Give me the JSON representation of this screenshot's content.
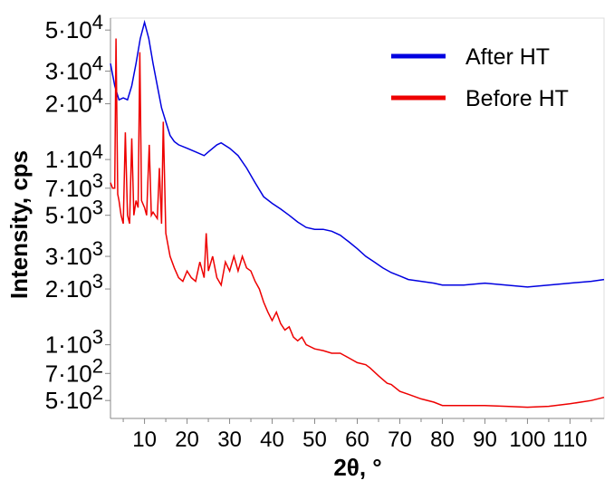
{
  "chart_data": {
    "type": "line",
    "xlabel": "2θ, °",
    "ylabel": "Intensity, cps",
    "yscale": "log",
    "xlim": [
      2,
      118
    ],
    "ylim": [
      400,
      58000
    ],
    "grid": false,
    "legend_position": "top-right",
    "x_ticks": [
      10,
      20,
      30,
      40,
      50,
      60,
      70,
      80,
      90,
      100,
      110
    ],
    "y_ticks": [
      {
        "value": 50000,
        "mant": "5",
        "exp": "4"
      },
      {
        "value": 30000,
        "mant": "3",
        "exp": "4"
      },
      {
        "value": 20000,
        "mant": "2",
        "exp": "4"
      },
      {
        "value": 10000,
        "mant": "1",
        "exp": "4"
      },
      {
        "value": 7000,
        "mant": "7",
        "exp": "3"
      },
      {
        "value": 5000,
        "mant": "5",
        "exp": "3"
      },
      {
        "value": 3000,
        "mant": "3",
        "exp": "3"
      },
      {
        "value": 2000,
        "mant": "2",
        "exp": "3"
      },
      {
        "value": 1000,
        "mant": "1",
        "exp": "3"
      },
      {
        "value": 700,
        "mant": "7",
        "exp": "2"
      },
      {
        "value": 500,
        "mant": "5",
        "exp": "2"
      }
    ],
    "series": [
      {
        "name": "After HT",
        "color": "#0000e0",
        "x": [
          2,
          3,
          4,
          5,
          6,
          7,
          8,
          9,
          10,
          11,
          12,
          13,
          14,
          15,
          16,
          17,
          18,
          20,
          22,
          24,
          25,
          27,
          28,
          30,
          32,
          34,
          36,
          38,
          40,
          42,
          44,
          46,
          48,
          50,
          52,
          54,
          56,
          58,
          60,
          62,
          64,
          66,
          68,
          70,
          72,
          75,
          78,
          80,
          85,
          90,
          95,
          100,
          105,
          110,
          115,
          118
        ],
        "y": [
          33000,
          25000,
          21000,
          21500,
          21000,
          25000,
          33000,
          45000,
          55000,
          45000,
          33000,
          25000,
          19000,
          16000,
          13500,
          12500,
          12000,
          11500,
          11000,
          10500,
          11000,
          12000,
          12300,
          11500,
          10500,
          9000,
          7500,
          6300,
          5800,
          5400,
          5000,
          4600,
          4300,
          4200,
          4200,
          4100,
          3900,
          3600,
          3300,
          3000,
          2800,
          2600,
          2450,
          2350,
          2250,
          2200,
          2150,
          2100,
          2100,
          2150,
          2100,
          2050,
          2100,
          2150,
          2200,
          2250
        ]
      },
      {
        "name": "Before HT",
        "color": "#ee0000",
        "x": [
          2,
          2.5,
          3,
          3.3,
          3.7,
          4,
          4.5,
          5,
          5.5,
          6,
          6.5,
          7,
          7.5,
          8,
          8.5,
          8.9,
          9.3,
          10,
          10.5,
          11.1,
          11.6,
          12,
          13,
          13.5,
          14,
          14.4,
          15,
          16,
          17,
          18,
          19,
          20,
          21,
          22,
          23,
          24,
          24.5,
          25,
          26,
          27,
          28,
          29,
          30,
          31,
          32,
          33,
          34,
          35,
          36,
          37,
          38,
          39,
          40,
          41,
          42,
          43,
          44,
          45,
          46,
          47,
          48,
          50,
          52,
          54,
          56,
          58,
          60,
          62,
          63,
          65,
          67,
          68,
          70,
          72,
          75,
          78,
          80,
          85,
          90,
          95,
          100,
          105,
          110,
          115,
          118
        ],
        "y": [
          7500,
          7000,
          7000,
          45000,
          6500,
          6000,
          5000,
          4500,
          14000,
          5000,
          4500,
          13000,
          5000,
          6000,
          5500,
          38000,
          6000,
          5500,
          5000,
          12000,
          5000,
          5200,
          4800,
          9000,
          4500,
          16000,
          4000,
          3000,
          2600,
          2300,
          2200,
          2500,
          2300,
          2200,
          2800,
          2300,
          4000,
          2500,
          3000,
          2300,
          2100,
          2800,
          2500,
          3000,
          2500,
          3000,
          2600,
          2500,
          2200,
          2000,
          1700,
          1500,
          1350,
          1500,
          1300,
          1200,
          1250,
          1100,
          1050,
          1100,
          1000,
          950,
          930,
          900,
          900,
          850,
          800,
          780,
          750,
          680,
          620,
          610,
          560,
          540,
          510,
          490,
          470,
          470,
          470,
          465,
          460,
          465,
          480,
          500,
          520
        ]
      }
    ]
  }
}
